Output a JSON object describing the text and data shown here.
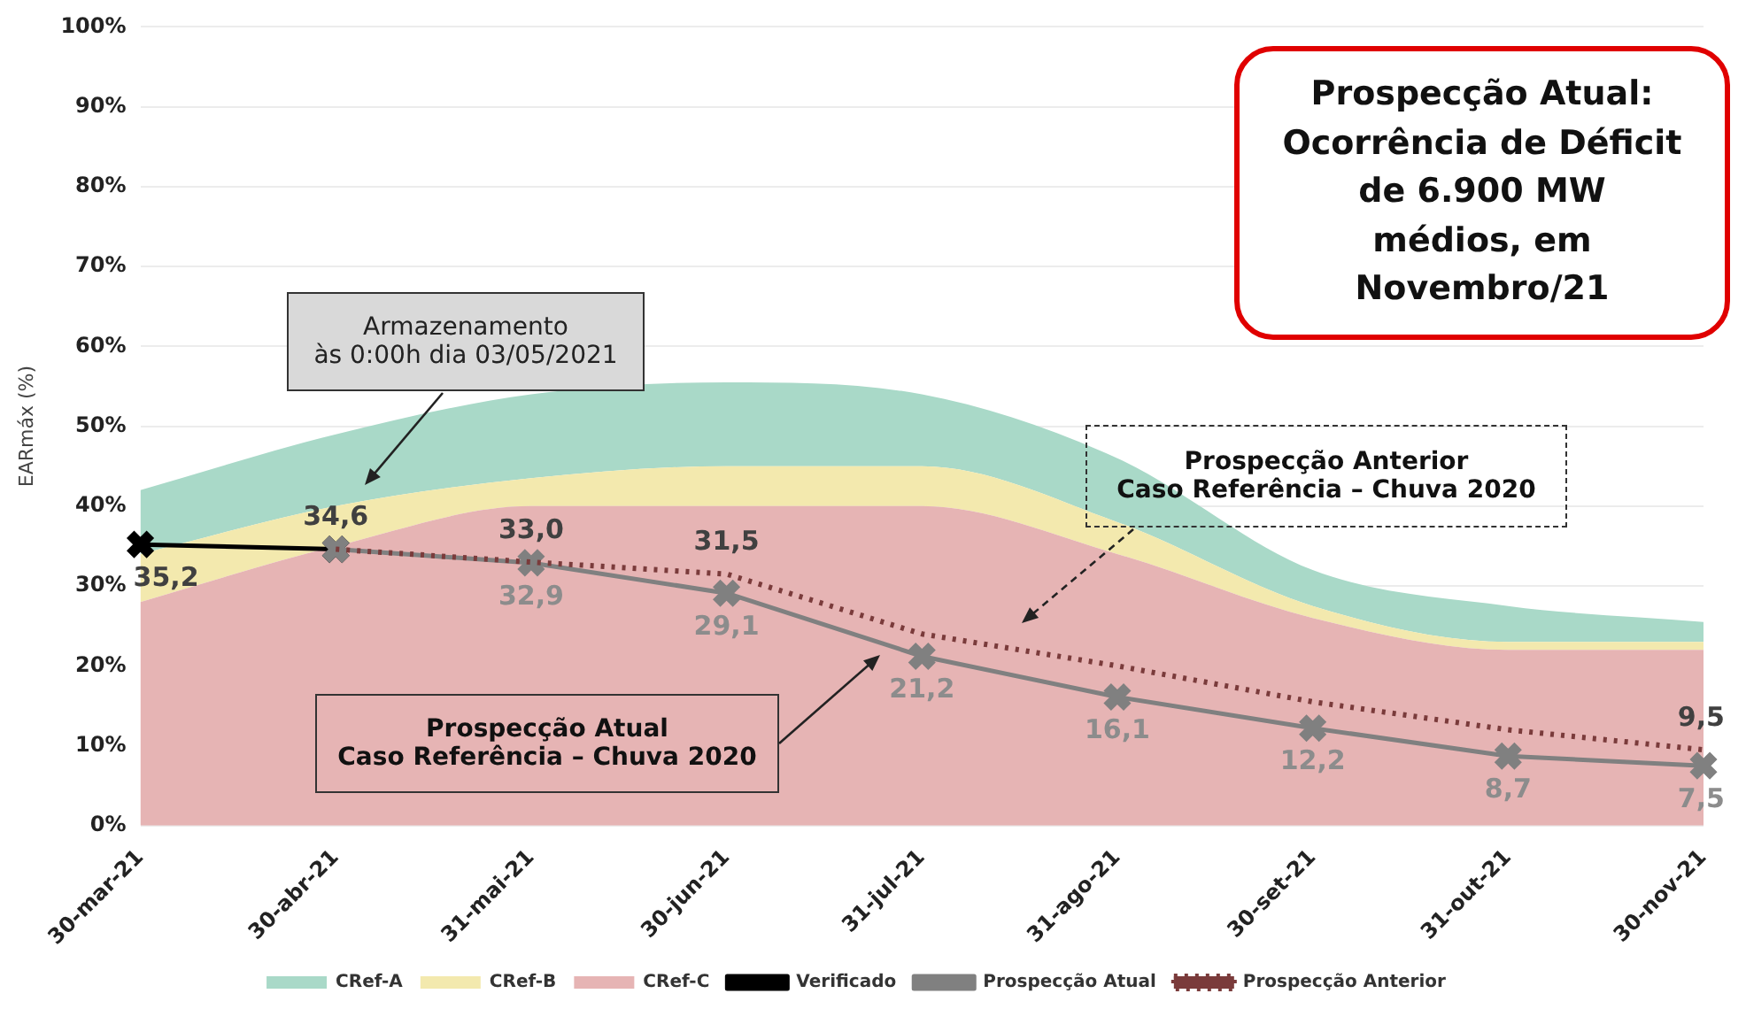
{
  "chart_data": {
    "type": "area",
    "ylabel": "EARmáx (%)",
    "categories": [
      "30-mar-21",
      "30-abr-21",
      "31-mai-21",
      "30-jun-21",
      "31-jul-21",
      "31-ago-21",
      "30-set-21",
      "31-out-21",
      "30-nov-21"
    ],
    "stacked": true,
    "series": [
      {
        "name": "CRef-C",
        "color": "#e6b4b4",
        "values": [
          28,
          35,
          40,
          40,
          40,
          34,
          26,
          22,
          22
        ]
      },
      {
        "name": "CRef-B",
        "color": "#f3e9ae",
        "values": [
          6,
          5,
          3.5,
          5,
          5,
          4,
          1.5,
          1,
          1
        ]
      },
      {
        "name": "CRef-A",
        "color": "#a9d9c8",
        "values": [
          8,
          9,
          10.5,
          10.5,
          9,
          8,
          4.5,
          4.5,
          2.5
        ]
      },
      {
        "name": "Verificado",
        "type": "line",
        "color": "#000000",
        "marker": "cross",
        "line_style": "solid",
        "values": [
          35.2,
          34.6,
          null,
          null,
          null,
          null,
          null,
          null,
          null
        ],
        "value_labels": [
          "35,2",
          "34,6",
          null,
          null,
          null,
          null,
          null,
          null,
          null
        ]
      },
      {
        "name": "Prospecção Atual",
        "type": "line",
        "color": "#808080",
        "marker": "cross",
        "line_style": "solid",
        "values": [
          null,
          34.6,
          32.9,
          29.1,
          21.2,
          16.1,
          12.2,
          8.7,
          7.5
        ],
        "value_labels": [
          null,
          null,
          "32,9",
          "29,1",
          "21,2",
          "16,1",
          "12,2",
          "8,7",
          "7,5"
        ]
      },
      {
        "name": "Prospecção Anterior",
        "type": "line",
        "color": "#7a3b3b",
        "marker": "none",
        "line_style": "dotted",
        "values": [
          null,
          34.6,
          33.0,
          31.5,
          24,
          20,
          15.5,
          12,
          9.5
        ],
        "value_labels": [
          null,
          null,
          "33,0",
          "31,5",
          null,
          null,
          null,
          null,
          "9,5"
        ]
      }
    ],
    "ylim": [
      0,
      100
    ],
    "yticks": [
      {
        "value": 0,
        "label": "0%"
      },
      {
        "value": 10,
        "label": "10%"
      },
      {
        "value": 20,
        "label": "20%"
      },
      {
        "value": 30,
        "label": "30%"
      },
      {
        "value": 40,
        "label": "40%"
      },
      {
        "value": 50,
        "label": "50%"
      },
      {
        "value": 60,
        "label": "60%"
      },
      {
        "value": 70,
        "label": "70%"
      },
      {
        "value": 80,
        "label": "80%"
      },
      {
        "value": 90,
        "label": "90%"
      },
      {
        "value": 100,
        "label": "100%"
      }
    ],
    "grid": "y",
    "legend": "bottom",
    "annotations": [
      "Armazenamento\nàs 0:00h dia 03/05/2021",
      "Prospecção Atual:\nOcorrência de Déficit\nde 6.900 MW\nmédios, em\nNovembro/21",
      "Prospecção Anterior\nCaso Referência – Chuva 2020",
      "Prospecção Atual\nCaso Referência – Chuva 2020"
    ]
  }
}
